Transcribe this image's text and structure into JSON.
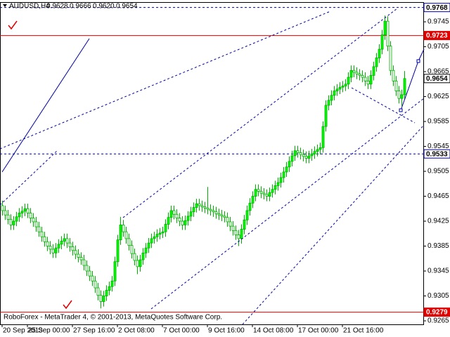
{
  "chart_data": {
    "type": "candlestick",
    "title": "AUDUSD,H4",
    "ohlc_labels": [
      "0.9628",
      "0.9666",
      "0.9620",
      "0.9654"
    ],
    "footer": "RoboForex - MetaTrader 4, © 2001-2013, MetaQuotes Software Corp.",
    "categories": [
      "20 Sep 2013",
      null,
      null,
      null,
      null,
      null,
      null,
      null,
      null,
      "25 Sep 00:00",
      null,
      null,
      null,
      null,
      null,
      null,
      null,
      null,
      null,
      null,
      null,
      null,
      null,
      null,
      null,
      "27 Sep 16:00",
      null,
      null,
      null,
      null,
      null,
      null,
      null,
      null,
      null,
      null,
      null,
      null,
      null,
      null,
      null,
      "2 Oct 08:00",
      null,
      null,
      null,
      null,
      null,
      null,
      null,
      null,
      null,
      null,
      null,
      null,
      null,
      null,
      null,
      "7 Oct 00:00",
      null,
      null,
      null,
      null,
      null,
      null,
      null,
      null,
      null,
      null,
      null,
      null,
      null,
      null,
      null,
      "9 Oct 16:00",
      null,
      null,
      null,
      null,
      null,
      null,
      null,
      null,
      null,
      null,
      null,
      null,
      null,
      null,
      null,
      "14 Oct 08:00",
      null,
      null,
      null,
      null,
      null,
      null,
      null,
      null,
      null,
      null,
      null,
      null,
      null,
      null,
      null,
      "17 Oct 00:00",
      null,
      null,
      null,
      null,
      null,
      null,
      null,
      null,
      null,
      null,
      null,
      null,
      null,
      null,
      null,
      "21 Oct 16:00",
      null,
      null,
      null,
      null,
      null,
      null,
      null,
      null,
      null,
      null,
      null,
      null,
      null,
      null,
      null,
      null,
      null,
      null,
      null,
      null,
      null,
      null
    ],
    "open": [
      0.945,
      0.9442,
      0.9435,
      0.9428,
      0.9419,
      0.9425,
      0.9432,
      0.9438,
      0.9441,
      0.9445,
      0.9438,
      0.943,
      0.9424,
      0.9416,
      0.9408,
      0.94,
      0.9392,
      0.9385,
      0.938,
      0.9374,
      0.9382,
      0.9388,
      0.9393,
      0.9397,
      0.939,
      0.9384,
      0.9378,
      0.9372,
      0.9367,
      0.9363,
      0.9354,
      0.9345,
      0.9337,
      0.9329,
      0.9318,
      0.9306,
      0.9296,
      0.9305,
      0.9314,
      0.932,
      0.9329,
      0.936,
      0.9395,
      0.9419,
      0.9408,
      0.9397,
      0.9386,
      0.9373,
      0.9362,
      0.9352,
      0.9363,
      0.9374,
      0.9382,
      0.939,
      0.9397,
      0.94,
      0.9404,
      0.9406,
      0.9408,
      0.942,
      0.9431,
      0.9442,
      0.9436,
      0.943,
      0.9425,
      0.9419,
      0.9426,
      0.9433,
      0.944,
      0.9447,
      0.9453,
      0.945,
      0.9448,
      0.9446,
      0.9444,
      0.9442,
      0.944,
      0.9437,
      0.9435,
      0.9433,
      0.9431,
      0.9424,
      0.9417,
      0.941,
      0.9403,
      0.9397,
      0.9412,
      0.9427,
      0.9442,
      0.9454,
      0.9465,
      0.9476,
      0.9473,
      0.947,
      0.9468,
      0.9465,
      0.9471,
      0.9476,
      0.9482,
      0.9487,
      0.9495,
      0.9504,
      0.9512,
      0.9521,
      0.953,
      0.9538,
      0.9535,
      0.9532,
      0.9529,
      0.9526,
      0.953,
      0.9533,
      0.9537,
      0.954,
      0.9543,
      0.9577,
      0.9611,
      0.9619,
      0.9627,
      0.9634,
      0.9637,
      0.964,
      0.9642,
      0.9645,
      0.9656,
      0.9667,
      0.9664,
      0.9661,
      0.9659,
      0.9656,
      0.965,
      0.9645,
      0.9659,
      0.9673,
      0.9687,
      0.9701,
      0.9724,
      0.9746,
      0.9706,
      0.9667,
      0.965,
      0.9634,
      0.9622,
      0.9628
    ],
    "high": [
      0.9458,
      0.945,
      0.9443,
      0.9436,
      0.9433,
      0.944,
      0.9446,
      0.9449,
      0.9453,
      0.9453,
      0.9446,
      0.9438,
      0.9432,
      0.9424,
      0.9416,
      0.9408,
      0.94,
      0.9393,
      0.9388,
      0.939,
      0.9396,
      0.9401,
      0.9405,
      0.9405,
      0.9398,
      0.9392,
      0.9386,
      0.938,
      0.9375,
      0.9371,
      0.9362,
      0.9353,
      0.9345,
      0.9337,
      0.9326,
      0.9314,
      0.9313,
      0.9322,
      0.9328,
      0.9337,
      0.9368,
      0.9403,
      0.9432,
      0.9427,
      0.9416,
      0.9405,
      0.9394,
      0.9381,
      0.937,
      0.9371,
      0.9382,
      0.939,
      0.9398,
      0.9405,
      0.9408,
      0.9412,
      0.9414,
      0.9416,
      0.9428,
      0.9439,
      0.945,
      0.945,
      0.9444,
      0.9438,
      0.9433,
      0.9434,
      0.9441,
      0.9448,
      0.9455,
      0.9461,
      0.9461,
      0.9458,
      0.9456,
      0.948,
      0.9452,
      0.945,
      0.9448,
      0.9445,
      0.9443,
      0.9441,
      0.9439,
      0.9432,
      0.9425,
      0.9418,
      0.9411,
      0.942,
      0.9435,
      0.945,
      0.9462,
      0.9473,
      0.9484,
      0.9484,
      0.9481,
      0.9478,
      0.9476,
      0.9479,
      0.9484,
      0.949,
      0.9495,
      0.9503,
      0.9512,
      0.952,
      0.9529,
      0.9538,
      0.9546,
      0.9546,
      0.9543,
      0.954,
      0.9537,
      0.9538,
      0.9541,
      0.9545,
      0.9548,
      0.9551,
      0.9585,
      0.9619,
      0.9627,
      0.9635,
      0.9642,
      0.9645,
      0.9648,
      0.965,
      0.9653,
      0.9664,
      0.9675,
      0.9675,
      0.9672,
      0.9669,
      0.9667,
      0.9664,
      0.9658,
      0.9667,
      0.9681,
      0.9695,
      0.9709,
      0.9732,
      0.9755,
      0.9754,
      0.9714,
      0.9675,
      0.9658,
      0.9642,
      0.9636,
      0.9666
    ],
    "low": [
      0.9434,
      0.9427,
      0.942,
      0.9411,
      0.9411,
      0.9417,
      0.9424,
      0.943,
      0.9433,
      0.943,
      0.9422,
      0.9416,
      0.9408,
      0.94,
      0.9392,
      0.9384,
      0.9377,
      0.9372,
      0.9366,
      0.9366,
      0.9374,
      0.938,
      0.9385,
      0.9382,
      0.9376,
      0.937,
      0.9364,
      0.9359,
      0.9355,
      0.9346,
      0.9337,
      0.9329,
      0.9321,
      0.931,
      0.9298,
      0.9285,
      0.9288,
      0.9297,
      0.9306,
      0.9312,
      0.9321,
      0.9352,
      0.9387,
      0.94,
      0.9389,
      0.9378,
      0.9365,
      0.9354,
      0.934,
      0.9344,
      0.9355,
      0.9366,
      0.9374,
      0.9382,
      0.9389,
      0.9392,
      0.9396,
      0.9398,
      0.94,
      0.9412,
      0.9423,
      0.9428,
      0.9422,
      0.9417,
      0.9411,
      0.9411,
      0.9418,
      0.9425,
      0.9432,
      0.9439,
      0.9442,
      0.944,
      0.9438,
      0.9436,
      0.9434,
      0.9432,
      0.9429,
      0.9427,
      0.9425,
      0.9423,
      0.9416,
      0.9409,
      0.9402,
      0.9395,
      0.9385,
      0.9389,
      0.9404,
      0.9419,
      0.9434,
      0.9446,
      0.9457,
      0.9465,
      0.9462,
      0.946,
      0.9457,
      0.9457,
      0.9463,
      0.9468,
      0.9474,
      0.9479,
      0.9487,
      0.9496,
      0.9504,
      0.9513,
      0.9522,
      0.9527,
      0.9524,
      0.9521,
      0.9518,
      0.9518,
      0.9522,
      0.9525,
      0.9529,
      0.9532,
      0.9535,
      0.9569,
      0.9603,
      0.9611,
      0.9619,
      0.9626,
      0.9629,
      0.9632,
      0.9634,
      0.9637,
      0.9648,
      0.9656,
      0.9653,
      0.9651,
      0.9648,
      0.9642,
      0.9637,
      0.9637,
      0.9651,
      0.9665,
      0.9679,
      0.9693,
      0.9716,
      0.9698,
      0.9659,
      0.9642,
      0.9626,
      0.9614,
      0.961,
      0.962
    ],
    "close": [
      0.9442,
      0.9435,
      0.9428,
      0.9419,
      0.9425,
      0.9432,
      0.9438,
      0.9441,
      0.9445,
      0.9438,
      0.943,
      0.9424,
      0.9416,
      0.9408,
      0.94,
      0.9392,
      0.9385,
      0.938,
      0.9374,
      0.9382,
      0.9388,
      0.9393,
      0.9397,
      0.939,
      0.9384,
      0.9378,
      0.9372,
      0.9367,
      0.9363,
      0.9354,
      0.9345,
      0.9337,
      0.9329,
      0.9318,
      0.9306,
      0.9296,
      0.9305,
      0.9314,
      0.932,
      0.9329,
      0.936,
      0.9395,
      0.9419,
      0.9408,
      0.9397,
      0.9386,
      0.9373,
      0.9362,
      0.9352,
      0.9363,
      0.9374,
      0.9382,
      0.939,
      0.9397,
      0.94,
      0.9404,
      0.9406,
      0.9408,
      0.942,
      0.9431,
      0.9442,
      0.9436,
      0.943,
      0.9425,
      0.9419,
      0.9426,
      0.9433,
      0.944,
      0.9447,
      0.9453,
      0.945,
      0.9448,
      0.9446,
      0.9444,
      0.9442,
      0.944,
      0.9437,
      0.9435,
      0.9433,
      0.9431,
      0.9424,
      0.9417,
      0.941,
      0.9403,
      0.9397,
      0.9412,
      0.9427,
      0.9442,
      0.9454,
      0.9465,
      0.9476,
      0.9473,
      0.947,
      0.9468,
      0.9465,
      0.9471,
      0.9476,
      0.9482,
      0.9487,
      0.9495,
      0.9504,
      0.9512,
      0.9521,
      0.953,
      0.9538,
      0.9535,
      0.9532,
      0.9529,
      0.9526,
      0.953,
      0.9533,
      0.9537,
      0.954,
      0.9543,
      0.9577,
      0.9611,
      0.9619,
      0.9627,
      0.9634,
      0.9637,
      0.964,
      0.9642,
      0.9645,
      0.9656,
      0.9667,
      0.9664,
      0.9661,
      0.9659,
      0.9656,
      0.965,
      0.9645,
      0.9659,
      0.9673,
      0.9687,
      0.9701,
      0.9724,
      0.9746,
      0.9706,
      0.9667,
      0.965,
      0.9634,
      0.9622,
      0.9628,
      0.9654
    ],
    "up_color": "#00ff00",
    "down_color": "#ffffff",
    "wick_color": "#00b000",
    "ylim": [
      0.9256,
      0.9771
    ],
    "yticks": [
      0.9745,
      0.9705,
      0.9665,
      0.9625,
      0.9585,
      0.9545,
      0.9505,
      0.9465,
      0.9425,
      0.9385,
      0.9345,
      0.9305,
      0.9265
    ],
    "levels": [
      {
        "value": 0.9768,
        "color": "#00008b",
        "style": "dashed",
        "label_bg": "#ffffff",
        "label_fg": "#000000"
      },
      {
        "value": 0.9723,
        "color": "#e00000",
        "style": "solid",
        "label_bg": "#e00000",
        "label_fg": "#ffffff"
      },
      {
        "value": 0.9533,
        "color": "#00008b",
        "style": "dashed",
        "label_bg": "#ffffff",
        "label_fg": "#000000"
      },
      {
        "value": 0.9279,
        "color": "#e00000",
        "style": "solid",
        "label_bg": "#e00000",
        "label_fg": "#ffffff"
      }
    ],
    "current_price": 0.9654
  }
}
